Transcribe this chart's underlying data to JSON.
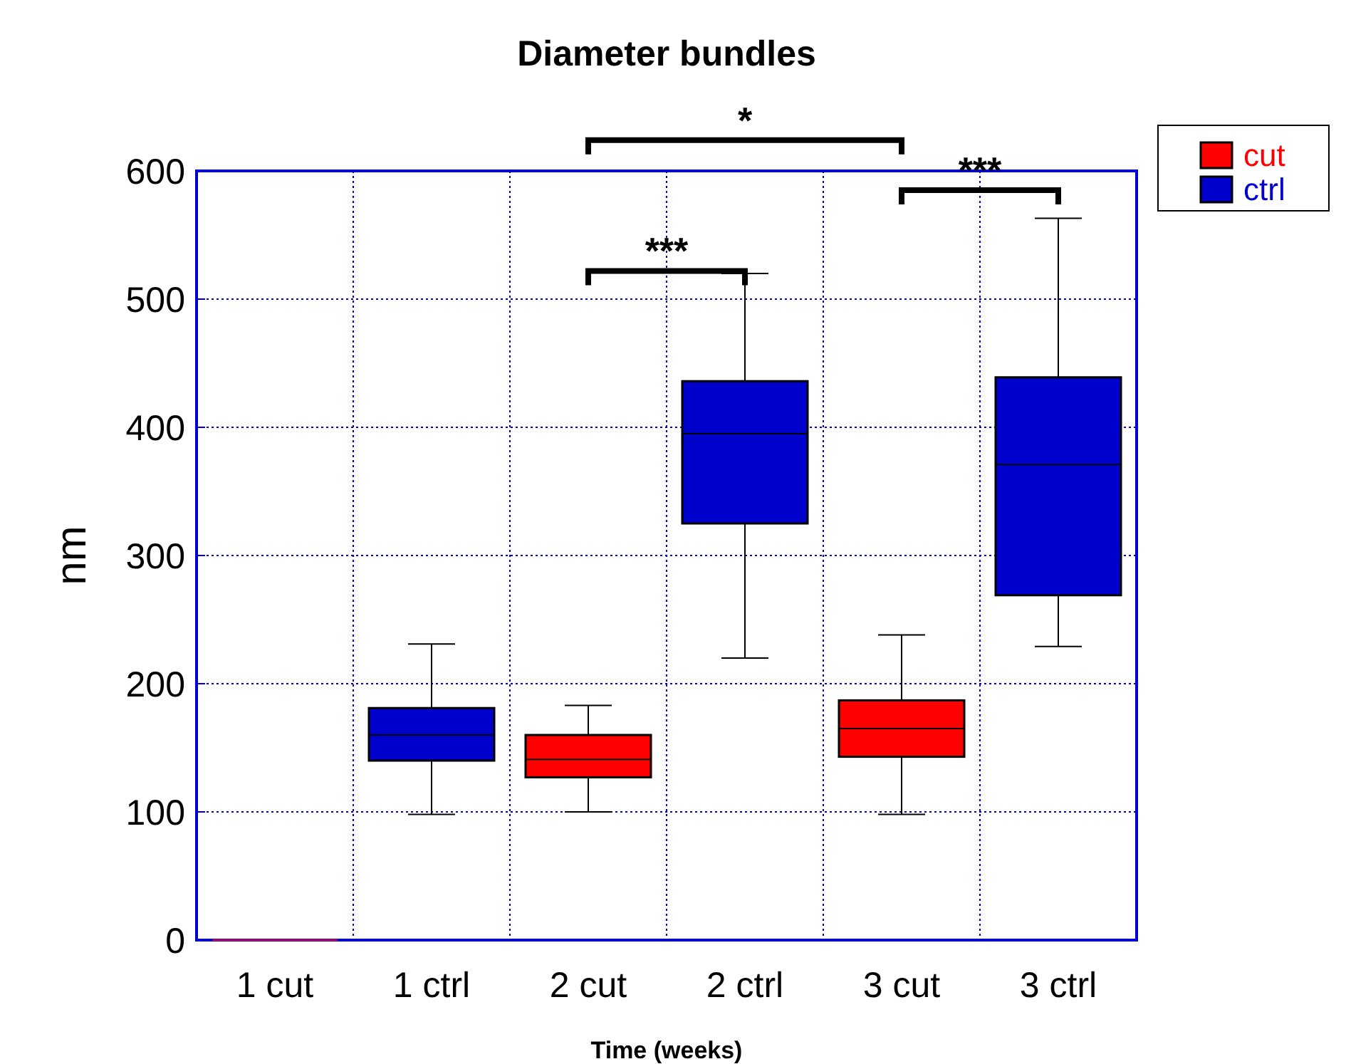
{
  "chart_data": {
    "type": "box",
    "title": "Diameter bundles",
    "xlabel": "Time (weeks)",
    "ylabel": "nm",
    "categories": [
      "1 cut",
      "1 ctrl",
      "2 cut",
      "2 ctrl",
      "3 cut",
      "3 ctrl"
    ],
    "ylim": [
      0,
      600
    ],
    "yticks": [
      0,
      100,
      200,
      300,
      400,
      500,
      600
    ],
    "grid": true,
    "legend": "top right",
    "series": [
      {
        "name": "cut",
        "color": "#ff0000",
        "boxes": [
          {
            "low": 0,
            "q1": 0,
            "median": 0,
            "q3": 0,
            "high": 0
          },
          null,
          {
            "low": 100,
            "q1": 127,
            "median": 141,
            "q3": 160,
            "high": 183
          },
          null,
          {
            "low": 98,
            "q1": 143,
            "median": 165,
            "q3": 187,
            "high": 238
          },
          null
        ]
      },
      {
        "name": "ctrl",
        "color": "#0000cc",
        "boxes": [
          null,
          {
            "low": 98,
            "q1": 140,
            "median": 160,
            "q3": 181,
            "high": 231
          },
          null,
          {
            "low": 220,
            "q1": 325,
            "median": 395,
            "q3": 436,
            "high": 520
          },
          null,
          {
            "low": 229,
            "q1": 269,
            "median": 371,
            "q3": 439,
            "high": 563
          }
        ]
      }
    ],
    "annotations": [
      "***",
      "*",
      "***"
    ]
  }
}
